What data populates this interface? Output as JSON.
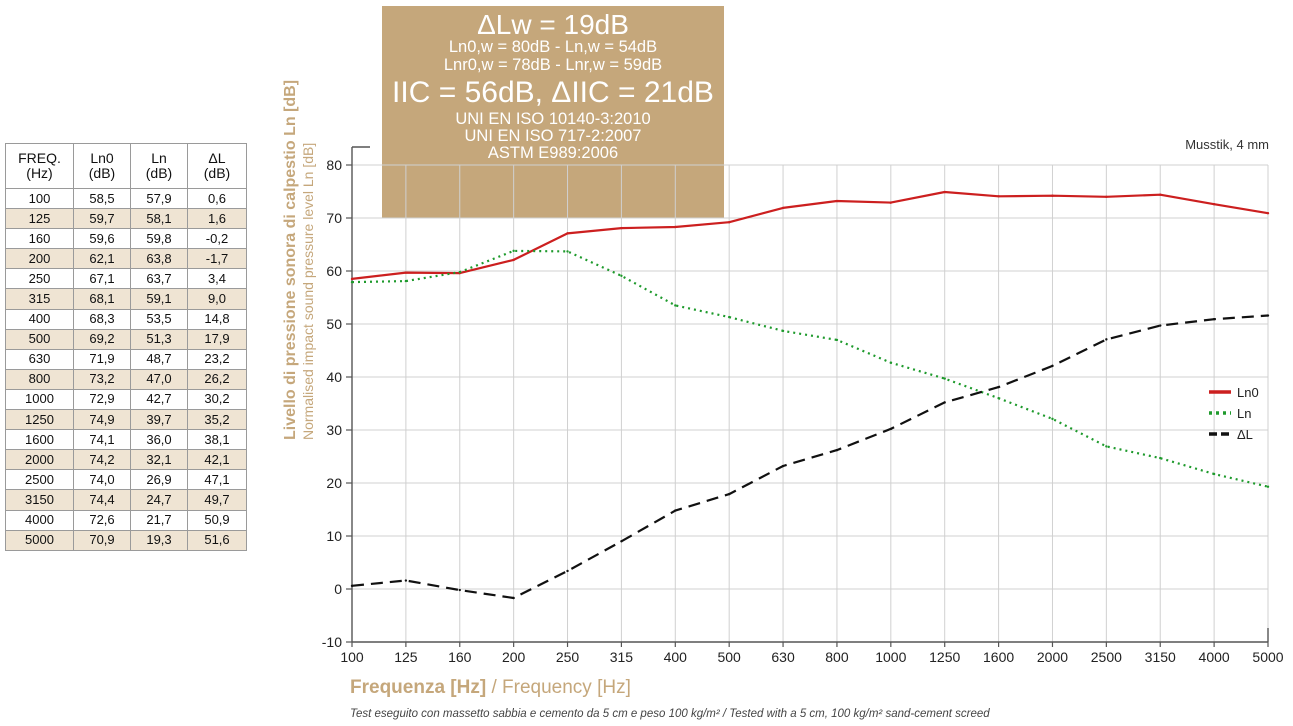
{
  "table": {
    "headers": [
      "FREQ.(Hz)",
      "Ln0\n(dB)",
      "Ln\n(dB)",
      "ΔL\n(dB)"
    ],
    "rows": [
      [
        "100",
        "58,5",
        "57,9",
        "0,6"
      ],
      [
        "125",
        "59,7",
        "58,1",
        "1,6"
      ],
      [
        "160",
        "59,6",
        "59,8",
        "-0,2"
      ],
      [
        "200",
        "62,1",
        "63,8",
        "-1,7"
      ],
      [
        "250",
        "67,1",
        "63,7",
        "3,4"
      ],
      [
        "315",
        "68,1",
        "59,1",
        "9,0"
      ],
      [
        "400",
        "68,3",
        "53,5",
        "14,8"
      ],
      [
        "500",
        "69,2",
        "51,3",
        "17,9"
      ],
      [
        "630",
        "71,9",
        "48,7",
        "23,2"
      ],
      [
        "800",
        "73,2",
        "47,0",
        "26,2"
      ],
      [
        "1000",
        "72,9",
        "42,7",
        "30,2"
      ],
      [
        "1250",
        "74,9",
        "39,7",
        "35,2"
      ],
      [
        "1600",
        "74,1",
        "36,0",
        "38,1"
      ],
      [
        "2000",
        "74,2",
        "32,1",
        "42,1"
      ],
      [
        "2500",
        "74,0",
        "26,9",
        "47,1"
      ],
      [
        "3150",
        "74,4",
        "24,7",
        "49,7"
      ],
      [
        "4000",
        "72,6",
        "21,7",
        "50,9"
      ],
      [
        "5000",
        "70,9",
        "19,3",
        "51,6"
      ]
    ]
  },
  "results_box": {
    "line1": "ΔLw = 19dB",
    "line2": "Ln0,w = 80dB - Ln,w = 54dB",
    "line3": "Lnr0,w = 78dB - Lnr,w = 59dB",
    "line4": "IIC = 56dB, ΔIIC = 21dB",
    "line5": "UNI EN ISO 10140-3:2010",
    "line6": "UNI EN ISO 717-2:2007",
    "line7": "ASTM E989:2006"
  },
  "product_label": "Musstik, 4 mm",
  "y_axis_title_it": "Livello di pressione sonora di calpestio Ln [dB]",
  "y_axis_title_en": "Normalised impact sound pressure level Ln [dB]",
  "x_axis_title_it": "Frequenza [Hz]",
  "x_axis_title_en": " / Frequency [Hz]",
  "footnote": "Test eseguito con massetto sabbia e cemento da 5 cm e peso 100 kg/m² / Tested with a 5 cm, 100 kg/m² sand-cement screed",
  "colors": {
    "accent": "#c5a77b",
    "ln0": "#cc1f1f",
    "ln": "#1e9a2c",
    "delta": "#111111",
    "table_alt": "#efe4d3"
  },
  "chart_data": {
    "type": "line",
    "categories": [
      "100",
      "125",
      "160",
      "200",
      "250",
      "315",
      "400",
      "500",
      "630",
      "800",
      "1000",
      "1250",
      "1600",
      "2000",
      "2500",
      "3150",
      "4000",
      "5000"
    ],
    "ylim": [
      -10,
      80
    ],
    "yticks": [
      -10,
      0,
      10,
      20,
      30,
      40,
      50,
      60,
      70,
      80
    ],
    "grid": true,
    "legend_position": "right",
    "series": [
      {
        "name": "Ln0",
        "style": "solid",
        "values": [
          58.5,
          59.7,
          59.6,
          62.1,
          67.1,
          68.1,
          68.3,
          69.2,
          71.9,
          73.2,
          72.9,
          74.9,
          74.1,
          74.2,
          74.0,
          74.4,
          72.6,
          70.9
        ]
      },
      {
        "name": "Ln",
        "style": "dotted",
        "values": [
          57.9,
          58.1,
          59.8,
          63.8,
          63.7,
          59.1,
          53.5,
          51.3,
          48.7,
          47.0,
          42.7,
          39.7,
          36.0,
          32.1,
          26.9,
          24.7,
          21.7,
          19.3
        ]
      },
      {
        "name": "ΔL",
        "style": "dashed",
        "values": [
          0.6,
          1.6,
          -0.2,
          -1.7,
          3.4,
          9.0,
          14.8,
          17.9,
          23.2,
          26.2,
          30.2,
          35.2,
          38.1,
          42.1,
          47.1,
          49.7,
          50.9,
          51.6
        ]
      }
    ]
  }
}
